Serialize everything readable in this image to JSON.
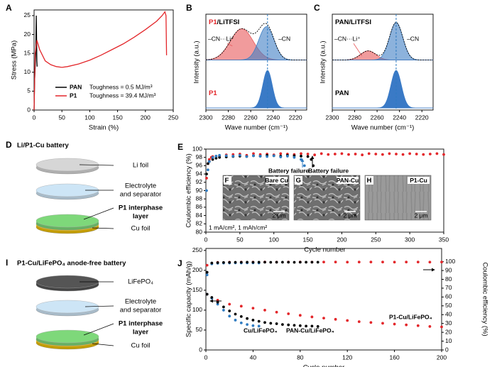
{
  "chart_data": [
    {
      "panel": "A",
      "type": "line",
      "xlabel": "Strain (%)",
      "ylabel": "Stress (MPa)",
      "xlim": [
        0,
        250
      ],
      "ylim": [
        0,
        26.5
      ],
      "xticks": [
        0,
        50,
        100,
        150,
        200,
        250
      ],
      "yticks": [
        0,
        5,
        10,
        15,
        20,
        25
      ],
      "series": [
        {
          "name": "PAN",
          "color": "#000000",
          "toughness": "Toughness = 0.5 MJ/m³",
          "x": [
            0,
            1,
            3,
            4,
            5,
            5.5
          ],
          "values": [
            0,
            8,
            15,
            25,
            13,
            11.5
          ]
        },
        {
          "name": "P1",
          "color": "#e3262a",
          "toughness": "Toughness = 39.4 MJ/m³",
          "x": [
            0,
            2,
            5,
            10,
            20,
            30,
            40,
            50,
            60,
            80,
            100,
            120,
            140,
            160,
            180,
            200,
            220,
            230,
            235,
            237,
            238
          ],
          "values": [
            0,
            15,
            18.5,
            16,
            13,
            12,
            11.5,
            11.3,
            11.5,
            12.2,
            13.2,
            14.5,
            16,
            17.5,
            19.3,
            21.3,
            23.5,
            25,
            26,
            25,
            14.5
          ]
        }
      ]
    },
    {
      "panel": "B",
      "type": "spectrum",
      "xlabel": "Wave number (cm⁻¹)",
      "ylabel": "Intensity (a.u.)",
      "xlim": [
        2300,
        2210
      ],
      "ylim": [
        0,
        2.3
      ],
      "xticks": [
        2300,
        2280,
        2260,
        2240,
        2220
      ],
      "reference": 2245,
      "reference_color": "#2f7bc1",
      "spectra": [
        {
          "label": [
            {
              "text": "P1",
              "color": "#e3262a"
            },
            {
              "text": "/LiTFSI",
              "color": "#000000"
            }
          ],
          "offset": 1.2,
          "peaks": [
            {
              "name": "–CN···Li⁺",
              "color": "#e8585a",
              "center": 2268,
              "width": 24,
              "height": 0.75
            },
            {
              "name": "–CN",
              "color": "#3f7fc4",
              "center": 2246,
              "width": 16,
              "height": 0.8
            }
          ]
        },
        {
          "label": [
            {
              "text": "P1",
              "color": "#e3262a"
            }
          ],
          "offset": 0.05,
          "peaks": [
            {
              "color": "#3a7ac6",
              "center": 2245,
              "width": 10,
              "height": 0.9
            }
          ]
        }
      ]
    },
    {
      "panel": "C",
      "type": "spectrum",
      "xlabel": "Wave number (cm⁻¹)",
      "ylabel": "Intensity (a.u.)",
      "xlim": [
        2300,
        2210
      ],
      "ylim": [
        0,
        2.3
      ],
      "xticks": [
        2300,
        2280,
        2260,
        2240,
        2220
      ],
      "reference": 2243,
      "reference_color": "#2f7bc1",
      "spectra": [
        {
          "label": [
            {
              "text": "PAN/LiTFSI",
              "color": "#000000"
            }
          ],
          "offset": 1.2,
          "peaks": [
            {
              "name": "–CN···Li⁺",
              "color": "#e8585a",
              "center": 2268,
              "width": 16,
              "height": 0.22
            },
            {
              "name": "–CN",
              "color": "#3f7fc4",
              "center": 2243,
              "width": 14,
              "height": 0.9
            }
          ]
        },
        {
          "label": [
            {
              "text": "PAN",
              "color": "#000000"
            }
          ],
          "offset": 0.05,
          "peaks": [
            {
              "color": "#3a7ac6",
              "center": 2243,
              "width": 11,
              "height": 0.9
            }
          ]
        }
      ]
    },
    {
      "panel": "E",
      "type": "scatter",
      "xlabel": "Cycle number",
      "ylabel": "Coulombic efficiency (%)",
      "xlim": [
        0,
        350
      ],
      "ylim": [
        80,
        100
      ],
      "xticks": [
        0,
        50,
        100,
        150,
        200,
        250,
        300,
        350
      ],
      "yticks": [
        80,
        82,
        84,
        86,
        88,
        90,
        92,
        94,
        96,
        98,
        100
      ],
      "series": [
        {
          "color": "#e3262a",
          "x": [
            1,
            3,
            5,
            8,
            10,
            20,
            30,
            40,
            50,
            60,
            70,
            80,
            90,
            100,
            110,
            120,
            130,
            140,
            150,
            160,
            170,
            180,
            190,
            200,
            210,
            220,
            230,
            240,
            250,
            260,
            270,
            280,
            290,
            300,
            310,
            320,
            330,
            340,
            350
          ],
          "values": [
            93,
            96.5,
            97.5,
            98,
            98.2,
            98.4,
            98.6,
            98.7,
            98.8,
            98.5,
            98.9,
            98.7,
            98.8,
            98.6,
            98.9,
            98.8,
            98.7,
            98.9,
            98.8,
            98.6,
            98.9,
            98.7,
            98.8,
            98.9,
            98.7,
            98.8,
            98.6,
            98.9,
            98.8,
            98.7,
            98.9,
            98.8,
            98.7,
            98.9,
            98.8,
            98.7,
            98.8,
            98.9,
            98.7
          ]
        },
        {
          "color": "#000000",
          "x": [
            1,
            3,
            5,
            10,
            15,
            20,
            30,
            40,
            50,
            60,
            70,
            80,
            90,
            100,
            110,
            120,
            130,
            140,
            150,
            155,
            158
          ],
          "values": [
            94,
            96.5,
            97,
            97.5,
            97.8,
            98,
            98.1,
            98.2,
            98.3,
            98.2,
            98.4,
            98.3,
            98.5,
            98.4,
            98.3,
            98.5,
            98.4,
            98.3,
            98.2,
            97.5,
            96
          ]
        },
        {
          "color": "#2f7bc1",
          "x": [
            1,
            3,
            5,
            10,
            15,
            20,
            30,
            40,
            50,
            60,
            70,
            80,
            90,
            100,
            110,
            120,
            130,
            140,
            145
          ],
          "values": [
            90,
            95,
            97,
            98,
            98.3,
            98.5,
            98.4,
            98.3,
            98.5,
            98.2,
            98.4,
            98.3,
            98.2,
            98.4,
            98.1,
            98.3,
            98.0,
            97.5,
            96
          ]
        }
      ],
      "annotations": [
        {
          "text": "Battery failure",
          "color": "#2f7bc1"
        },
        {
          "text": "Battery failure",
          "color": "#000000"
        }
      ],
      "conditions": "1 mA/cm²,  1 mAh/cm²",
      "insets": [
        {
          "panel": "F",
          "label": "Bare Cu",
          "label_color": "#2f7bc1",
          "scale": "2 μm"
        },
        {
          "panel": "G",
          "label": "PAN-Cu",
          "label_color": "#000000",
          "scale": "2 μm"
        },
        {
          "panel": "H",
          "label": "P1-Cu",
          "label_color": "#e3262a",
          "scale": "2 μm"
        }
      ]
    },
    {
      "panel": "J",
      "type": "scatter",
      "xlabel": "Cycle number",
      "ylabel": "Specific capacity (mAh/g)",
      "y2label": "Coulombic efficiency (%)",
      "xlim": [
        0,
        200
      ],
      "ylim": [
        0,
        255
      ],
      "y2lim": [
        0,
        115
      ],
      "xticks": [
        0,
        40,
        80,
        120,
        160,
        200
      ],
      "yticks": [
        0,
        50,
        100,
        150,
        200,
        250
      ],
      "y2ticks": [
        0,
        10,
        20,
        30,
        40,
        50,
        60,
        70,
        80,
        90,
        100
      ],
      "series": [
        {
          "name": "P1-Cu/LiFePO₄",
          "color": "#e3262a",
          "x": [
            1,
            10,
            20,
            30,
            40,
            50,
            60,
            70,
            80,
            90,
            100,
            110,
            120,
            130,
            140,
            150,
            160,
            170,
            180,
            190,
            200
          ],
          "values": [
            140,
            125,
            115,
            110,
            105,
            100,
            95,
            91,
            87,
            83,
            80,
            77,
            74,
            71,
            69,
            67,
            65,
            63,
            61,
            59,
            58
          ]
        },
        {
          "name": "Cu/LiFePO₄",
          "color": "#2f7bc1",
          "x": [
            1,
            5,
            10,
            15,
            20,
            25,
            30,
            35,
            40,
            45
          ],
          "values": [
            140,
            130,
            115,
            100,
            85,
            75,
            68,
            64,
            61,
            60
          ]
        },
        {
          "name": "PAN-Cu/LiFePO₄",
          "color": "#000000",
          "x": [
            1,
            5,
            10,
            15,
            20,
            25,
            30,
            35,
            40,
            45,
            50,
            55,
            60,
            65,
            70,
            75,
            80,
            85,
            90,
            95
          ],
          "values": [
            140,
            132,
            120,
            108,
            98,
            90,
            84,
            79,
            75,
            72,
            69,
            67,
            66,
            64,
            63,
            62,
            61,
            60,
            60,
            59
          ]
        },
        {
          "color": "#e3262a",
          "axis": "y2",
          "x": [
            1,
            10,
            20,
            30,
            40,
            50,
            60,
            70,
            80,
            90,
            100,
            110,
            120,
            130,
            140,
            150,
            160,
            170,
            180,
            190,
            200
          ],
          "values": [
            96,
            99.2,
            99.4,
            99.5,
            99.5,
            99.6,
            99.5,
            99.6,
            99.6,
            99.5,
            99.6,
            99.6,
            99.5,
            99.6,
            99.6,
            99.6,
            99.5,
            99.6,
            99.6,
            99.5,
            99.6
          ]
        },
        {
          "color": "#2f7bc1",
          "axis": "y2",
          "x": [
            1,
            5,
            10,
            15,
            20,
            25,
            30,
            35,
            40,
            45
          ],
          "values": [
            85,
            97.5,
            98.2,
            98.4,
            98.5,
            98.6,
            98.5,
            98.6,
            98.6,
            98.5
          ]
        },
        {
          "color": "#000000",
          "axis": "y2",
          "x": [
            1,
            5,
            10,
            15,
            20,
            25,
            30,
            35,
            40,
            45,
            50,
            55,
            60,
            65,
            70,
            75,
            80,
            85,
            90,
            95
          ],
          "values": [
            88,
            98.5,
            98.9,
            99.1,
            99.2,
            99.3,
            99.3,
            99.4,
            99.3,
            99.4,
            99.4,
            99.3,
            99.4,
            99.4,
            99.4,
            99.3,
            99.4,
            99.4,
            99.4,
            99.4
          ]
        }
      ]
    }
  ],
  "diagrams": [
    {
      "panel": "D",
      "title": "Li/P1-Cu battery",
      "layers": [
        {
          "label": [
            "Li foil"
          ],
          "color": "#d6d6d6"
        },
        {
          "label": [
            "Electrolyte",
            "and separator"
          ],
          "color": "#cde5f6"
        },
        {
          "label": [
            "P1 interphase",
            "layer"
          ],
          "color": "#7ed87a",
          "label_color": "#e3262a"
        },
        {
          "label": [
            "Cu foil"
          ],
          "color": "#f0c000"
        }
      ]
    },
    {
      "panel": "I",
      "title": "P1-Cu/LiFePO₄ anode-free battery",
      "layers": [
        {
          "label": [
            "LiFePO₄"
          ],
          "color": "#555555"
        },
        {
          "label": [
            "Electrolyte",
            "and separator"
          ],
          "color": "#cde5f6"
        },
        {
          "label": [
            "P1 interphase",
            "layer"
          ],
          "color": "#7ed87a",
          "label_color": "#e3262a"
        },
        {
          "label": [
            "Cu foil"
          ],
          "color": "#f0c000"
        }
      ]
    }
  ]
}
